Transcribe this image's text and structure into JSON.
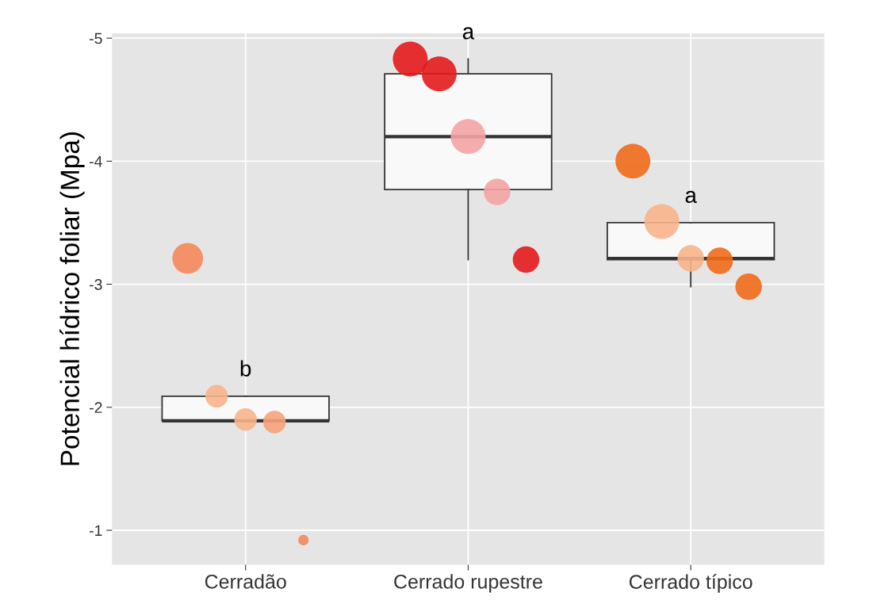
{
  "chart_data": {
    "type": "box",
    "ylabel": "Potencial hídrico foliar (Mpa)",
    "categories": [
      "Cerradão",
      "Cerrado rupestre",
      "Cerrado típico"
    ],
    "boxes": [
      {
        "low": -2.09,
        "q1": -2.09,
        "median": -1.89,
        "q3": -1.89,
        "high": -1.89
      },
      {
        "low": -4.83,
        "q1": -4.71,
        "median": -4.2,
        "q3": -3.77,
        "high": -3.2
      },
      {
        "low": -3.5,
        "q1": -3.5,
        "median": -3.21,
        "q3": -3.2,
        "high": -2.98
      }
    ],
    "series": [
      {
        "type": "bubble",
        "x": [
          "Cerradão",
          "Cerradão",
          "Cerradão",
          "Cerradão",
          "Cerradão",
          "Cerrado rupestre",
          "Cerrado rupestre",
          "Cerrado rupestre",
          "Cerrado rupestre",
          "Cerrado rupestre",
          "Cerrado típico",
          "Cerrado típico",
          "Cerrado típico",
          "Cerrado típico",
          "Cerrado típico"
        ],
        "values": [
          -3.21,
          -2.09,
          -1.9,
          -1.88,
          -0.92,
          -4.83,
          -4.71,
          -4.2,
          -3.75,
          -3.2,
          -4.0,
          -3.51,
          -3.21,
          -3.19,
          -2.98
        ],
        "sizes": [
          0.78,
          0.42,
          0.42,
          0.42,
          0.09,
          1,
          1,
          1,
          0.58,
          0.58,
          1,
          1,
          0.58,
          0.58,
          0.58
        ],
        "colors": [
          "#f4875a",
          "#f8b48a",
          "#f8b48a",
          "#f6a27a",
          "#f4875a",
          "#e31a1c",
          "#e31a1c",
          "#f4a3a3",
          "#f4a3a3",
          "#e31a1c",
          "#f06a1a",
          "#f8b48a",
          "#f8b48a",
          "#f06a1a",
          "#f06a1a"
        ]
      }
    ],
    "annotations": [
      "b",
      "a",
      "a"
    ],
    "ylim": [
      -0.72,
      -5.04
    ],
    "yticks": [
      -5,
      -4,
      -3,
      -2,
      -1
    ],
    "grid": true
  }
}
